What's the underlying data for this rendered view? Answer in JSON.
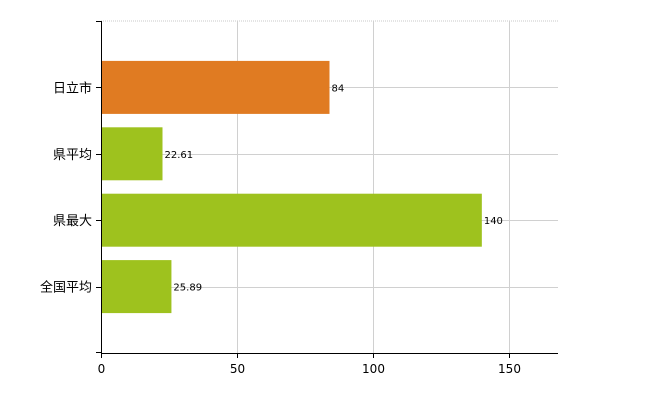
{
  "chart_data": {
    "type": "bar",
    "orientation": "horizontal",
    "categories": [
      "日立市",
      "県平均",
      "県最大",
      "全国平均"
    ],
    "values": [
      84,
      22.61,
      140,
      25.89
    ],
    "value_labels": [
      "84",
      "22.61",
      "140",
      "25.89"
    ],
    "bar_colors": [
      "#e07b22",
      "#9ec21e",
      "#9ec21e",
      "#9ec21e"
    ],
    "x_ticks": [
      0,
      50,
      100,
      150
    ],
    "xlim": [
      0,
      168
    ],
    "title": "",
    "xlabel": "",
    "ylabel": "",
    "grid": true,
    "legend": "none"
  }
}
